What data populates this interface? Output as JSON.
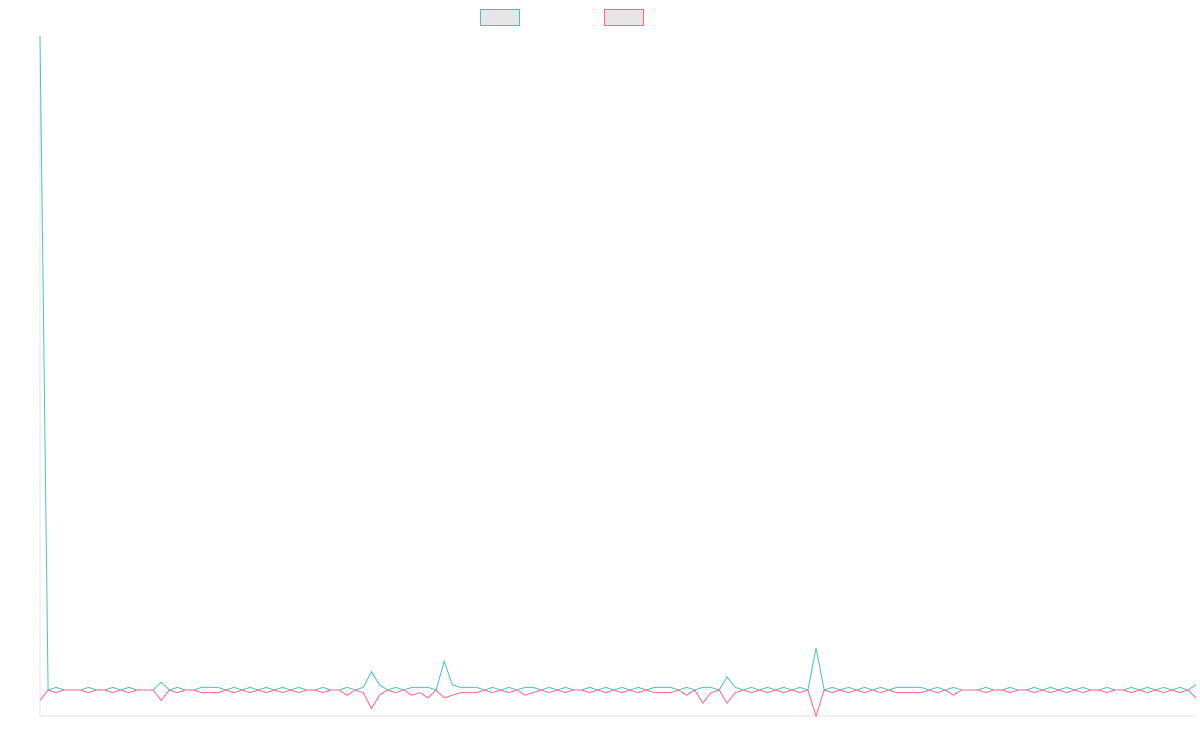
{
  "chart_data": {
    "type": "line",
    "title": "",
    "xlabel": "",
    "ylabel": "",
    "legend": "top-center",
    "grid": false,
    "ylim": [
      -1,
      25
    ],
    "series": [
      {
        "color": "#4bc0c0",
        "values": [
          25,
          0,
          0.1,
          0,
          0,
          0,
          0.1,
          0,
          0,
          0.1,
          0,
          0.1,
          0,
          0,
          0,
          0.3,
          0,
          0.1,
          0,
          0,
          0.1,
          0.1,
          0.1,
          0,
          0.1,
          0,
          0.1,
          0,
          0.1,
          0,
          0.1,
          0,
          0.1,
          0,
          0,
          0.1,
          0,
          0,
          0.1,
          0,
          0.1,
          0.7,
          0.2,
          0,
          0.1,
          0,
          0.1,
          0.1,
          0.1,
          0,
          1.1,
          0.2,
          0.1,
          0.1,
          0.1,
          0,
          0.1,
          0,
          0.1,
          0,
          0.1,
          0.1,
          0,
          0.1,
          0,
          0.1,
          0,
          0,
          0.1,
          0,
          0.1,
          0,
          0.1,
          0,
          0.1,
          0,
          0.1,
          0.1,
          0.1,
          0,
          0.1,
          0,
          0.1,
          0.1,
          0,
          0.5,
          0.1,
          0,
          0.1,
          0,
          0.1,
          0,
          0.1,
          0,
          0.1,
          0,
          1.6,
          0,
          0.1,
          0,
          0.1,
          0,
          0.1,
          0,
          0.1,
          0,
          0.1,
          0.1,
          0.1,
          0.1,
          0,
          0.1,
          0,
          0.1,
          0,
          0,
          0,
          0.1,
          0,
          0,
          0.1,
          0,
          0,
          0.1,
          0,
          0.1,
          0,
          0.1,
          0,
          0.1,
          0,
          0,
          0.1,
          0,
          0,
          0.1,
          0,
          0.1,
          0,
          0.1,
          0,
          0.1,
          0,
          0.2
        ]
      },
      {
        "color": "#ff6384",
        "values": [
          -0.4,
          0,
          -0.1,
          0,
          0,
          0,
          -0.1,
          0,
          0,
          -0.1,
          0,
          -0.1,
          0,
          0,
          0,
          -0.4,
          0,
          -0.1,
          0,
          0,
          -0.1,
          -0.1,
          -0.1,
          0,
          -0.1,
          0,
          -0.1,
          0,
          -0.1,
          0,
          -0.1,
          0,
          -0.1,
          0,
          0,
          -0.1,
          0,
          0,
          -0.2,
          0,
          -0.1,
          -0.7,
          -0.2,
          0,
          -0.1,
          0,
          -0.2,
          -0.1,
          -0.3,
          0,
          -0.3,
          -0.2,
          -0.1,
          -0.1,
          -0.1,
          0,
          -0.1,
          0,
          -0.1,
          0,
          -0.2,
          -0.1,
          0,
          -0.1,
          0,
          -0.1,
          0,
          0,
          -0.1,
          0,
          -0.1,
          0,
          -0.1,
          0,
          -0.1,
          0,
          -0.1,
          -0.1,
          -0.1,
          0,
          -0.2,
          0,
          -0.5,
          -0.1,
          0,
          -0.5,
          -0.1,
          0,
          -0.1,
          0,
          -0.1,
          0,
          -0.1,
          0,
          -0.1,
          0,
          -1,
          0,
          -0.1,
          0,
          -0.1,
          0,
          -0.1,
          0,
          -0.1,
          0,
          -0.1,
          -0.1,
          -0.1,
          -0.1,
          0,
          -0.1,
          0,
          -0.2,
          0,
          0,
          0,
          -0.1,
          0,
          0,
          -0.1,
          0,
          0,
          -0.1,
          0,
          -0.1,
          0,
          -0.1,
          0,
          -0.1,
          0,
          0,
          -0.1,
          0,
          0,
          -0.1,
          0,
          -0.1,
          0,
          -0.1,
          0,
          -0.1,
          0,
          -0.3
        ]
      }
    ]
  }
}
